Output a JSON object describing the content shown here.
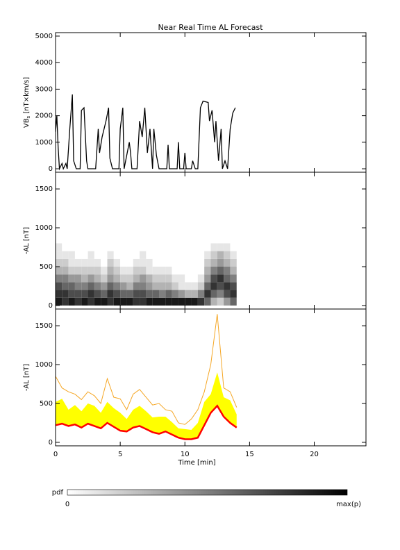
{
  "chart_data": [
    {
      "type": "line",
      "title": "Near Real Time AL Forecast",
      "ylabel": {
        "main": "VB",
        "sub": "s",
        "unit": " [nT×km/s]"
      },
      "xlim": [
        0,
        24
      ],
      "xticks": [
        0,
        5,
        10,
        15,
        20
      ],
      "ylim": [
        -130,
        5130
      ],
      "yticks": [
        0,
        1000,
        2000,
        3000,
        4000,
        5000
      ],
      "color": "#000000",
      "x": [
        0,
        0.1,
        0.2,
        0.3,
        0.5,
        0.6,
        0.8,
        0.9,
        1.1,
        1.3,
        1.4,
        1.6,
        1.9,
        2.0,
        2.2,
        2.4,
        2.5,
        3.1,
        3.3,
        3.4,
        3.6,
        3.9,
        4.1,
        4.2,
        4.4,
        4.9,
        5.0,
        5.2,
        5.3,
        5.7,
        5.8,
        5.9,
        6.3,
        6.5,
        6.7,
        6.9,
        7.1,
        7.3,
        7.5,
        7.6,
        7.8,
        8.0,
        8.6,
        8.7,
        8.8,
        9.4,
        9.5,
        9.6,
        9.9,
        10.0,
        10.1,
        10.5,
        10.6,
        10.8,
        11.0,
        11.2,
        11.4,
        11.8,
        11.9,
        12.1,
        12.3,
        12.4,
        12.6,
        12.8,
        12.9,
        13.1,
        13.3,
        13.5,
        13.7,
        13.9
      ],
      "values": [
        1400,
        2000,
        800,
        0,
        200,
        0,
        200,
        0,
        1500,
        2800,
        300,
        0,
        0,
        2200,
        2300,
        300,
        0,
        0,
        1500,
        600,
        1200,
        1800,
        2300,
        400,
        0,
        0,
        1500,
        2300,
        0,
        1000,
        600,
        0,
        0,
        1800,
        1200,
        2300,
        600,
        1500,
        0,
        1500,
        500,
        0,
        0,
        900,
        0,
        0,
        1000,
        0,
        0,
        600,
        0,
        0,
        300,
        0,
        0,
        2300,
        2550,
        2500,
        1800,
        2200,
        1000,
        1800,
        300,
        1500,
        0,
        300,
        0,
        1500,
        2100,
        2300
      ]
    },
    {
      "type": "heatmap",
      "ylabel": "-AL [nT]",
      "xlim": [
        0,
        24
      ],
      "xticks": [
        0,
        5,
        10,
        15,
        20
      ],
      "ylim": [
        -45,
        1715
      ],
      "yticks": [
        0,
        500,
        1000,
        1500
      ],
      "x_edges": [
        0,
        0.5,
        1,
        1.5,
        2,
        2.5,
        3,
        3.5,
        4,
        4.5,
        5,
        5.5,
        6,
        6.5,
        7,
        7.5,
        8,
        8.5,
        9,
        9.5,
        10,
        10.5,
        11,
        11.5,
        12,
        12.5,
        13,
        13.5,
        14
      ],
      "y_edges": [
        0,
        100,
        200,
        300,
        400,
        500,
        600,
        700,
        800
      ],
      "values": [
        [
          0.9,
          0.8,
          0.7,
          0.5,
          0.3,
          0.2,
          0.1,
          0.1
        ],
        [
          0.8,
          0.8,
          0.6,
          0.5,
          0.3,
          0.2,
          0.1,
          0
        ],
        [
          0.9,
          0.7,
          0.6,
          0.4,
          0.2,
          0.1,
          0.1,
          0
        ],
        [
          0.8,
          0.7,
          0.5,
          0.4,
          0.2,
          0.1,
          0,
          0
        ],
        [
          0.9,
          0.7,
          0.5,
          0.3,
          0.2,
          0.1,
          0,
          0
        ],
        [
          0.8,
          0.8,
          0.6,
          0.4,
          0.2,
          0.1,
          0.1,
          0
        ],
        [
          0.9,
          0.7,
          0.5,
          0.3,
          0.2,
          0.1,
          0,
          0
        ],
        [
          0.9,
          0.6,
          0.4,
          0.2,
          0.1,
          0,
          0,
          0
        ],
        [
          0.8,
          0.8,
          0.6,
          0.4,
          0.3,
          0.2,
          0.1,
          0
        ],
        [
          0.9,
          0.7,
          0.5,
          0.3,
          0.2,
          0.1,
          0,
          0
        ],
        [
          0.9,
          0.6,
          0.4,
          0.2,
          0.1,
          0,
          0,
          0
        ],
        [
          0.9,
          0.6,
          0.3,
          0.2,
          0.1,
          0,
          0,
          0
        ],
        [
          0.8,
          0.7,
          0.5,
          0.3,
          0.2,
          0.1,
          0,
          0
        ],
        [
          0.8,
          0.7,
          0.5,
          0.4,
          0.2,
          0.1,
          0.1,
          0
        ],
        [
          0.9,
          0.6,
          0.4,
          0.3,
          0.1,
          0.1,
          0,
          0
        ],
        [
          0.9,
          0.6,
          0.3,
          0.2,
          0.1,
          0,
          0,
          0
        ],
        [
          0.9,
          0.5,
          0.3,
          0.2,
          0.1,
          0,
          0,
          0
        ],
        [
          0.9,
          0.6,
          0.3,
          0.2,
          0.1,
          0,
          0,
          0
        ],
        [
          0.9,
          0.5,
          0.2,
          0.1,
          0,
          0,
          0,
          0
        ],
        [
          0.9,
          0.4,
          0.1,
          0.1,
          0,
          0,
          0,
          0
        ],
        [
          0.9,
          0.3,
          0.1,
          0,
          0,
          0,
          0,
          0
        ],
        [
          0.9,
          0.3,
          0.1,
          0,
          0,
          0,
          0,
          0
        ],
        [
          0.8,
          0.5,
          0.2,
          0.1,
          0,
          0,
          0,
          0
        ],
        [
          0.6,
          0.8,
          0.6,
          0.4,
          0.3,
          0.2,
          0.1,
          0
        ],
        [
          0.3,
          0.6,
          0.8,
          0.7,
          0.5,
          0.3,
          0.2,
          0.1
        ],
        [
          0.2,
          0.5,
          0.7,
          0.8,
          0.6,
          0.4,
          0.3,
          0.1
        ],
        [
          0.4,
          0.7,
          0.8,
          0.6,
          0.5,
          0.3,
          0.2,
          0.1
        ],
        [
          0.6,
          0.8,
          0.7,
          0.5,
          0.3,
          0.2,
          0.1,
          0
        ]
      ]
    },
    {
      "type": "band",
      "ylabel": "-AL [nT]",
      "xlabel": "Time [min]",
      "xlim": [
        0,
        24
      ],
      "xticks": [
        0,
        5,
        10,
        15,
        20
      ],
      "ylim": [
        -45,
        1715
      ],
      "yticks": [
        0,
        500,
        1000,
        1500
      ],
      "x": [
        0,
        0.5,
        1,
        1.5,
        2,
        2.5,
        3,
        3.5,
        4,
        4.5,
        5,
        5.5,
        6,
        6.5,
        7,
        7.5,
        8,
        8.5,
        9,
        9.5,
        10,
        10.5,
        11,
        11.5,
        12,
        12.5,
        13,
        13.5,
        14
      ],
      "series": [
        {
          "color": "#f5a623",
          "values": [
            850,
            700,
            650,
            620,
            550,
            650,
            600,
            500,
            820,
            580,
            560,
            420,
            620,
            680,
            580,
            480,
            500,
            420,
            400,
            250,
            230,
            300,
            420,
            650,
            1000,
            1650,
            700,
            650,
            450
          ]
        },
        {
          "color": "#ffff00",
          "values": [
            520,
            560,
            420,
            480,
            400,
            500,
            470,
            380,
            520,
            440,
            380,
            300,
            420,
            470,
            400,
            320,
            330,
            330,
            260,
            180,
            170,
            160,
            250,
            520,
            620,
            900,
            580,
            540,
            360
          ]
        },
        {
          "color": "#ff0000",
          "values": [
            220,
            240,
            210,
            230,
            190,
            240,
            210,
            180,
            250,
            200,
            150,
            140,
            190,
            210,
            170,
            130,
            110,
            140,
            100,
            60,
            40,
            40,
            60,
            220,
            380,
            470,
            330,
            250,
            190
          ]
        }
      ]
    }
  ],
  "colorbar": {
    "label": "pdf",
    "min_label": "0",
    "max_label": "max(p)"
  }
}
